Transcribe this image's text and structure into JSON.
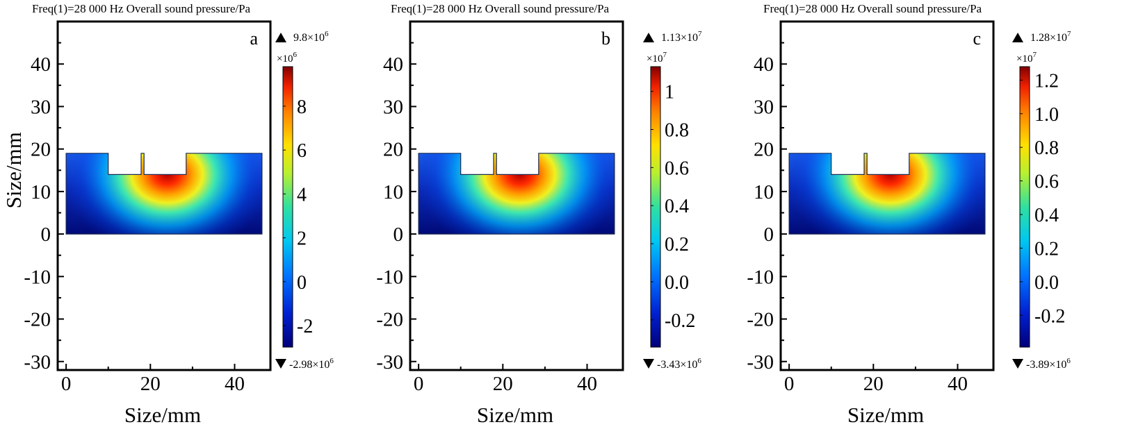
{
  "figure": {
    "panels": [
      {
        "title": "Freq(1)=28 000 Hz Overall sound pressure/Pa",
        "label": "a",
        "max_label": "9.8×10",
        "max_exp": "6",
        "min_label": "-2.98×10",
        "min_exp": "6",
        "scale_label": "×10",
        "scale_exp": "6"
      },
      {
        "title": "Freq(1)=28 000 Hz Overall sound pressure/Pa",
        "label": "b",
        "max_label": "1.13×10",
        "max_exp": "7",
        "min_label": "-3.43×10",
        "min_exp": "6",
        "scale_label": "×10",
        "scale_exp": "7"
      },
      {
        "title": "Freq(1)=28 000 Hz Overall sound pressure/Pa",
        "label": "c",
        "max_label": "1.28×10",
        "max_exp": "7",
        "min_label": "-3.89×10",
        "min_exp": "6",
        "scale_label": "×10",
        "scale_exp": "7"
      }
    ]
  },
  "chart_data": [
    {
      "type": "heatmap",
      "title": "Freq(1)=28 000 Hz Overall sound pressure/Pa",
      "panel_label": "a",
      "xlabel": "Size/mm",
      "ylabel": "Size/mm",
      "xlim": [
        -2,
        48.5
      ],
      "ylim": [
        -32,
        50
      ],
      "xticks": [
        0,
        20,
        40
      ],
      "yticks": [
        40,
        30,
        20,
        10,
        0,
        -10,
        -20,
        -30
      ],
      "colormap": "rainbow",
      "colorbar_ticks": [
        "8",
        "6",
        "4",
        "2",
        "0",
        "-2"
      ],
      "colorbar_tick_values": [
        8,
        6,
        4,
        2,
        0,
        -2
      ],
      "colorbar_range": [
        -2.98,
        9.8
      ],
      "colorbar_scale": "×10^6",
      "max_value": 9800000,
      "min_value": -2980000,
      "domain_outline_mm": [
        [
          0,
          0
        ],
        [
          46.5,
          0
        ],
        [
          46.5,
          19
        ],
        [
          28.5,
          19
        ],
        [
          28.5,
          14
        ],
        [
          18.5,
          14
        ],
        [
          18.5,
          19
        ],
        [
          17.8,
          19
        ],
        [
          17.8,
          14
        ],
        [
          10,
          14
        ],
        [
          10,
          19
        ],
        [
          0,
          19
        ]
      ],
      "hotspot_mm": [
        24,
        14
      ]
    },
    {
      "type": "heatmap",
      "title": "Freq(1)=28 000 Hz Overall sound pressure/Pa",
      "panel_label": "b",
      "xlabel": "Size/mm",
      "ylabel": "",
      "xlim": [
        -2,
        48.5
      ],
      "ylim": [
        -32,
        50
      ],
      "xticks": [
        0,
        20,
        40
      ],
      "yticks": [
        40,
        30,
        20,
        10,
        0,
        -10,
        -20,
        -30
      ],
      "colormap": "rainbow",
      "colorbar_ticks": [
        "1",
        "0.8",
        "0.6",
        "0.4",
        "0.2",
        "0.0",
        "-0.2"
      ],
      "colorbar_tick_values": [
        1,
        0.8,
        0.6,
        0.4,
        0.2,
        0,
        -0.2
      ],
      "colorbar_range": [
        -0.343,
        1.13
      ],
      "colorbar_scale": "×10^7",
      "max_value": 11300000,
      "min_value": -3430000,
      "domain_outline_mm": [
        [
          0,
          0
        ],
        [
          46.5,
          0
        ],
        [
          46.5,
          19
        ],
        [
          28.5,
          19
        ],
        [
          28.5,
          14
        ],
        [
          18.5,
          14
        ],
        [
          18.5,
          19
        ],
        [
          17.8,
          19
        ],
        [
          17.8,
          14
        ],
        [
          10,
          14
        ],
        [
          10,
          19
        ],
        [
          0,
          19
        ]
      ],
      "hotspot_mm": [
        24,
        14
      ]
    },
    {
      "type": "heatmap",
      "title": "Freq(1)=28 000 Hz Overall sound pressure/Pa",
      "panel_label": "c",
      "xlabel": "Size/mm",
      "ylabel": "",
      "xlim": [
        -2,
        48.5
      ],
      "ylim": [
        -32,
        50
      ],
      "xticks": [
        0,
        20,
        40
      ],
      "yticks": [
        40,
        30,
        20,
        10,
        0,
        -10,
        -20,
        -30
      ],
      "colormap": "rainbow",
      "colorbar_ticks": [
        "1.2",
        "1.0",
        "0.8",
        "0.6",
        "0.4",
        "0.2",
        "0.0",
        "-0.2"
      ],
      "colorbar_tick_values": [
        1.2,
        1.0,
        0.8,
        0.6,
        0.4,
        0.2,
        0,
        -0.2
      ],
      "colorbar_range": [
        -0.389,
        1.28
      ],
      "colorbar_scale": "×10^7",
      "max_value": 12800000,
      "min_value": -3890000,
      "domain_outline_mm": [
        [
          0,
          0
        ],
        [
          46.5,
          0
        ],
        [
          46.5,
          19
        ],
        [
          28.5,
          19
        ],
        [
          28.5,
          14
        ],
        [
          18.5,
          14
        ],
        [
          18.5,
          19
        ],
        [
          17.8,
          19
        ],
        [
          17.8,
          14
        ],
        [
          10,
          14
        ],
        [
          10,
          19
        ],
        [
          0,
          19
        ]
      ],
      "hotspot_mm": [
        24,
        14
      ]
    }
  ]
}
